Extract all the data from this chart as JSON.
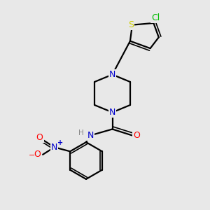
{
  "background_color": "#e8e8e8",
  "bond_color": "#000000",
  "atom_colors": {
    "N": "#0000cc",
    "O": "#ff0000",
    "S": "#cccc00",
    "Cl": "#00bb00",
    "H": "#888888",
    "C": "#000000"
  }
}
